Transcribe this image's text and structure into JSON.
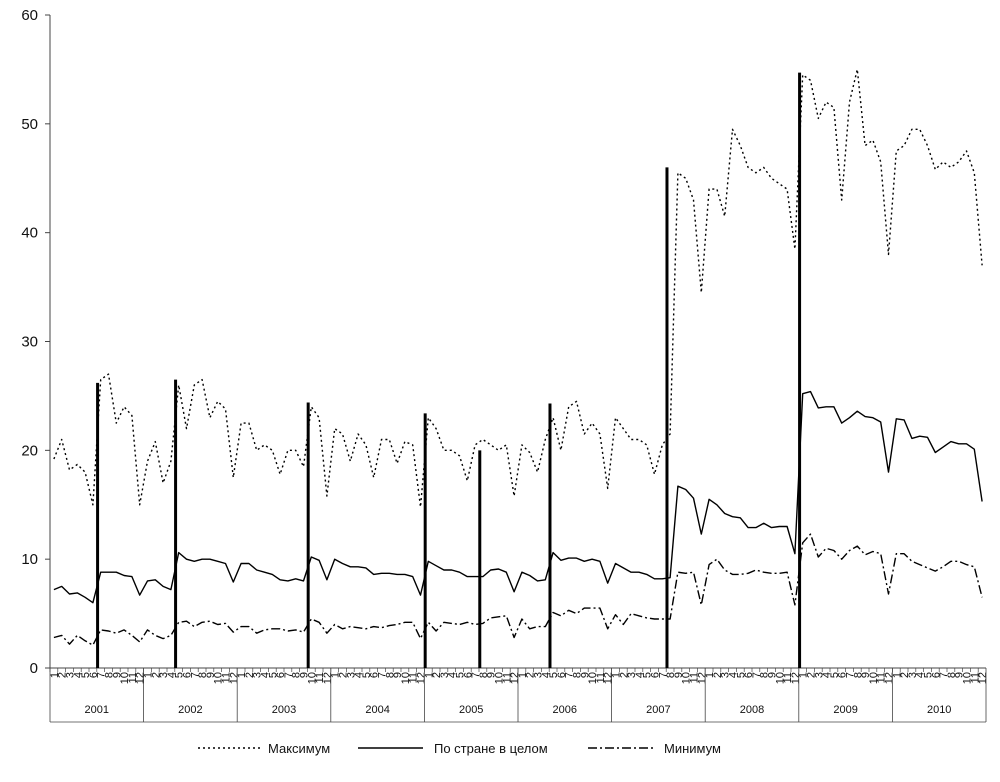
{
  "chart_data": {
    "type": "line",
    "title": "",
    "xlabel": "",
    "ylabel": "",
    "ylim": [
      0,
      60
    ],
    "y_ticks": [
      0,
      10,
      20,
      30,
      40,
      50,
      60
    ],
    "grid": false,
    "legend_position": "bottom",
    "years": [
      "2001",
      "2002",
      "2003",
      "2004",
      "2005",
      "2006",
      "2007",
      "2008",
      "2009",
      "2010"
    ],
    "month_labels": [
      "1",
      "2",
      "3",
      "4",
      "5",
      "6",
      "7",
      "8",
      "9",
      "10",
      "11",
      "12"
    ],
    "series": [
      {
        "name": "Максимум",
        "style": "dotted",
        "values": [
          19.2,
          21.0,
          18.2,
          18.7,
          18.0,
          15.0,
          26.5,
          27.0,
          22.5,
          24.0,
          23.2,
          15.0,
          19.0,
          20.8,
          17.0,
          19.0,
          26.0,
          22.0,
          26.0,
          26.5,
          23.0,
          24.5,
          23.8,
          17.5,
          22.5,
          22.5,
          20.0,
          20.5,
          20.0,
          17.8,
          20.0,
          20.0,
          18.5,
          24.0,
          23.0,
          15.8,
          22.0,
          21.5,
          19.0,
          21.5,
          20.5,
          17.5,
          21.0,
          21.0,
          18.8,
          20.8,
          20.5,
          14.8,
          23.0,
          22.0,
          20.0,
          20.0,
          19.5,
          17.2,
          20.5,
          21.0,
          20.5,
          20.0,
          20.5,
          15.8,
          20.5,
          19.8,
          18.0,
          21.0,
          23.0,
          20.0,
          24.0,
          24.5,
          21.5,
          22.5,
          21.5,
          16.5,
          23.0,
          22.0,
          21.0,
          21.0,
          20.5,
          17.8,
          20.5,
          21.5,
          45.5,
          45.0,
          43.0,
          34.5,
          44.0,
          44.0,
          41.5,
          49.5,
          48.0,
          46.0,
          45.5,
          46.0,
          45.0,
          44.5,
          44.0,
          38.5,
          54.5,
          54.0,
          50.5,
          52.0,
          51.5,
          43.0,
          52.0,
          55.0,
          48.0,
          48.5,
          46.5,
          38.0,
          47.5,
          48.0,
          49.5,
          49.5,
          48.0,
          45.8,
          46.5,
          46.0,
          46.5,
          47.5,
          45.5,
          37.0
        ]
      },
      {
        "name": "По стране в целом",
        "style": "solid",
        "values": [
          7.2,
          7.5,
          6.8,
          6.9,
          6.5,
          6.0,
          8.8,
          8.8,
          8.8,
          8.5,
          8.4,
          6.7,
          8.0,
          8.1,
          7.5,
          7.2,
          10.6,
          10.0,
          9.8,
          10.0,
          10.0,
          9.8,
          9.6,
          7.9,
          9.6,
          9.6,
          9.0,
          8.8,
          8.6,
          8.1,
          8.0,
          8.2,
          8.0,
          10.2,
          9.9,
          8.1,
          10.0,
          9.6,
          9.3,
          9.3,
          9.2,
          8.6,
          8.7,
          8.7,
          8.6,
          8.6,
          8.4,
          6.7,
          9.8,
          9.4,
          9.0,
          9.0,
          8.8,
          8.4,
          8.4,
          8.4,
          9.0,
          9.1,
          8.8,
          7.0,
          8.8,
          8.5,
          8.0,
          8.1,
          10.6,
          9.9,
          10.1,
          10.1,
          9.8,
          10.0,
          9.8,
          7.8,
          9.6,
          9.2,
          8.8,
          8.8,
          8.6,
          8.2,
          8.2,
          8.3,
          16.7,
          16.4,
          15.6,
          12.3,
          15.5,
          15.0,
          14.2,
          13.9,
          13.8,
          12.9,
          12.9,
          13.3,
          12.9,
          13.0,
          13.0,
          10.5,
          25.2,
          25.4,
          23.9,
          24.0,
          24.0,
          22.5,
          23.0,
          23.6,
          23.1,
          23.0,
          22.6,
          18.0,
          22.9,
          22.8,
          21.1,
          21.3,
          21.2,
          19.8,
          20.3,
          20.8,
          20.6,
          20.6,
          20.1,
          15.3
        ]
      },
      {
        "name": "Минимум",
        "style": "dashdot",
        "values": [
          2.8,
          3.0,
          2.2,
          3.0,
          2.5,
          2.1,
          3.5,
          3.4,
          3.2,
          3.5,
          3.0,
          2.4,
          3.5,
          3.0,
          2.7,
          3.0,
          4.2,
          4.3,
          3.8,
          4.2,
          4.3,
          4.0,
          4.1,
          3.3,
          3.8,
          3.8,
          3.2,
          3.5,
          3.6,
          3.6,
          3.4,
          3.5,
          3.3,
          4.5,
          4.2,
          3.2,
          4.0,
          3.6,
          3.8,
          3.7,
          3.6,
          3.8,
          3.7,
          3.9,
          4.0,
          4.2,
          4.2,
          2.7,
          4.2,
          3.4,
          4.2,
          4.1,
          4.0,
          4.2,
          4.0,
          4.1,
          4.6,
          4.7,
          4.8,
          2.8,
          4.5,
          3.6,
          3.8,
          3.8,
          5.1,
          4.8,
          5.3,
          5.0,
          5.5,
          5.5,
          5.5,
          3.6,
          4.9,
          4.0,
          5.0,
          4.8,
          4.6,
          4.5,
          4.5,
          4.5,
          8.8,
          8.7,
          8.8,
          5.8,
          9.5,
          10.0,
          9.0,
          8.6,
          8.6,
          8.7,
          9.0,
          8.8,
          8.7,
          8.7,
          8.8,
          5.8,
          11.5,
          12.3,
          10.2,
          11.0,
          10.8,
          10.0,
          10.8,
          11.2,
          10.4,
          10.7,
          10.5,
          6.8,
          10.5,
          10.5,
          9.8,
          9.5,
          9.2,
          8.9,
          9.3,
          9.8,
          9.8,
          9.5,
          9.3,
          6.5
        ]
      }
    ],
    "vertical_markers": [
      {
        "year": "2001",
        "month": 7,
        "value": 26.2
      },
      {
        "year": "2002",
        "month": 5,
        "value": 26.5
      },
      {
        "year": "2003",
        "month": 10,
        "value": 24.4
      },
      {
        "year": "2005",
        "month": 1,
        "value": 23.4
      },
      {
        "year": "2005",
        "month": 8,
        "value": 20.0
      },
      {
        "year": "2006",
        "month": 5,
        "value": 24.3
      },
      {
        "year": "2007",
        "month": 8,
        "value": 46.0
      },
      {
        "year": "2009",
        "month": 1,
        "value": 54.7
      }
    ]
  }
}
